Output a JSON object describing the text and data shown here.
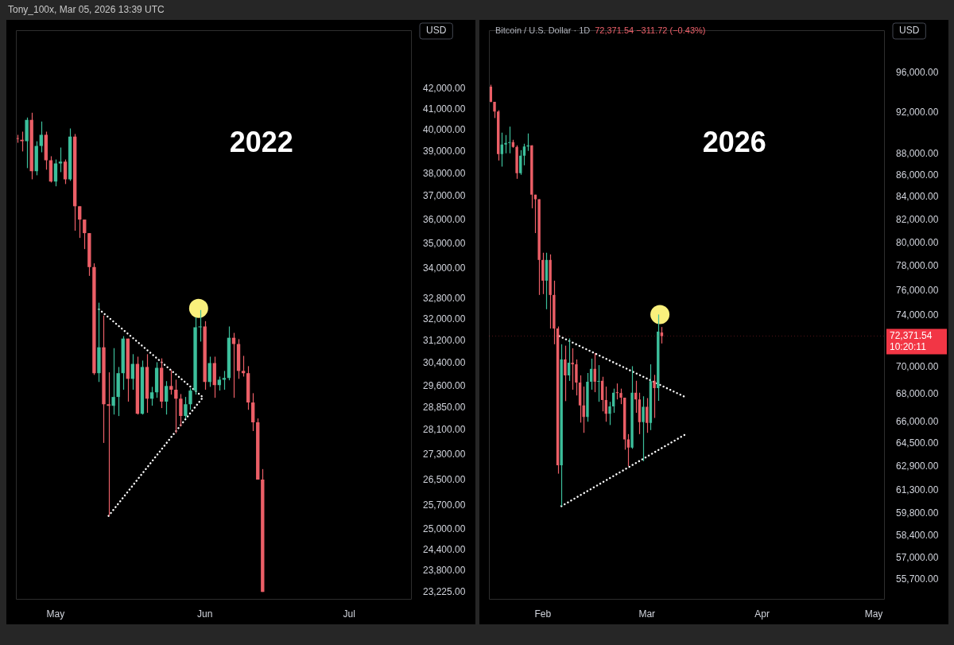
{
  "chart_data": [
    {
      "type": "candlestick",
      "title": "2022",
      "ylabel": "USD",
      "annotations": [
        "Tony_100x, Mar 05, 2026 13:39 UTC"
      ],
      "log": "y",
      "x": [
        "2022-04-23",
        "2022-04-24",
        "2022-04-25",
        "2022-04-26",
        "2022-04-27",
        "2022-04-28",
        "2022-04-29",
        "2022-04-30",
        "2022-05-01",
        "2022-05-02",
        "2022-05-03",
        "2022-05-04",
        "2022-05-05",
        "2022-05-06",
        "2022-05-07",
        "2022-05-08",
        "2022-05-09",
        "2022-05-10",
        "2022-05-11",
        "2022-05-12",
        "2022-05-13",
        "2022-05-14",
        "2022-05-15",
        "2022-05-16",
        "2022-05-17",
        "2022-05-18",
        "2022-05-19",
        "2022-05-20",
        "2022-05-21",
        "2022-05-22",
        "2022-05-23",
        "2022-05-24",
        "2022-05-25",
        "2022-05-26",
        "2022-05-27",
        "2022-05-28",
        "2022-05-29",
        "2022-05-30",
        "2022-05-31",
        "2022-06-01",
        "2022-06-02",
        "2022-06-03",
        "2022-06-04",
        "2022-06-05",
        "2022-06-06",
        "2022-06-07",
        "2022-06-08",
        "2022-06-09",
        "2022-06-10",
        "2022-06-11",
        "2022-06-12",
        "2022-06-13"
      ],
      "ohlc": [
        [
          39620,
          39790,
          39420,
          39600
        ],
        [
          39560,
          39940,
          39020,
          39490
        ],
        [
          39490,
          40610,
          38260,
          40500
        ],
        [
          40500,
          40840,
          37760,
          38120
        ],
        [
          38120,
          39490,
          37940,
          39270
        ],
        [
          39270,
          40420,
          38980,
          39790
        ],
        [
          39790,
          39940,
          38190,
          38620
        ],
        [
          38620,
          38800,
          37620,
          37660
        ],
        [
          37660,
          38650,
          37450,
          38470
        ],
        [
          38470,
          39200,
          38080,
          38550
        ],
        [
          38550,
          38650,
          37550,
          37760
        ],
        [
          37760,
          40090,
          37690,
          39710
        ],
        [
          39710,
          39830,
          35540,
          36580
        ],
        [
          36580,
          36580,
          35240,
          36010
        ],
        [
          36010,
          36010,
          34780,
          35440
        ],
        [
          35440,
          35440,
          33700,
          34050
        ],
        [
          34050,
          34200,
          29990,
          30050
        ],
        [
          30050,
          32650,
          29740,
          30980
        ],
        [
          30980,
          32160,
          27680,
          28970
        ],
        [
          28970,
          30080,
          25400,
          28920
        ],
        [
          28920,
          30950,
          28620,
          29220
        ],
        [
          29220,
          30270,
          28570,
          30050
        ],
        [
          30050,
          31390,
          29470,
          31300
        ],
        [
          31300,
          31300,
          29060,
          29850
        ],
        [
          29850,
          30730,
          29470,
          30380
        ],
        [
          30380,
          30640,
          28620,
          28650
        ],
        [
          28650,
          30500,
          28620,
          30270
        ],
        [
          30270,
          30730,
          28680,
          29160
        ],
        [
          29160,
          29570,
          28920,
          29380
        ],
        [
          29380,
          30440,
          29190,
          30240
        ],
        [
          30240,
          30580,
          28840,
          29060
        ],
        [
          29060,
          29770,
          28620,
          29600
        ],
        [
          29600,
          30160,
          29300,
          29470
        ],
        [
          29470,
          29820,
          28000,
          29160
        ],
        [
          29160,
          29320,
          28220,
          28570
        ],
        [
          28570,
          29220,
          28490,
          28970
        ],
        [
          28970,
          29520,
          28780,
          29440
        ],
        [
          29440,
          32100,
          29300,
          31720
        ],
        [
          31720,
          32370,
          31190,
          31750
        ],
        [
          31750,
          31950,
          29470,
          29740
        ],
        [
          29740,
          30640,
          29570,
          30410
        ],
        [
          30410,
          30640,
          29190,
          29630
        ],
        [
          29630,
          29930,
          29440,
          29820
        ],
        [
          29820,
          30130,
          29470,
          29880
        ],
        [
          29880,
          31750,
          29800,
          31330
        ],
        [
          31330,
          31510,
          29190,
          31100
        ],
        [
          31100,
          31280,
          29850,
          30130
        ],
        [
          30130,
          30670,
          29930,
          30050
        ],
        [
          30050,
          30300,
          28780,
          29030
        ],
        [
          29030,
          29350,
          28070,
          28360
        ],
        [
          28360,
          28490,
          26510,
          26510
        ],
        [
          26510,
          26840,
          23225,
          23225
        ]
      ],
      "colors": [
        "#ec5f67",
        "#ec5f67",
        "#3cbf9c",
        "#ec5f67",
        "#3cbf9c",
        "#3cbf9c",
        "#ec5f67",
        "#ec5f67",
        "#3cbf9c",
        "#3cbf9c",
        "#ec5f67",
        "#3cbf9c",
        "#ec5f67",
        "#ec5f67",
        "#ec5f67",
        "#ec5f67",
        "#ec5f67",
        "#3cbf9c",
        "#ec5f67",
        "#ec5f67",
        "#3cbf9c",
        "#3cbf9c",
        "#3cbf9c",
        "#ec5f67",
        "#3cbf9c",
        "#ec5f67",
        "#3cbf9c",
        "#ec5f67",
        "#3cbf9c",
        "#3cbf9c",
        "#ec5f67",
        "#3cbf9c",
        "#ec5f67",
        "#ec5f67",
        "#ec5f67",
        "#3cbf9c",
        "#3cbf9c",
        "#3cbf9c",
        "#3cbf9c",
        "#ec5f67",
        "#3cbf9c",
        "#ec5f67",
        "#3cbf9c",
        "#3cbf9c",
        "#3cbf9c",
        "#ec5f67",
        "#ec5f67",
        "#ec5f67",
        "#ec5f67",
        "#ec5f67",
        "#ec5f67",
        "#ec5f67"
      ],
      "series": [
        {
          "type": "line",
          "x": [
            "2022-05-10",
            "2022-05-31T18:00"
          ],
          "values": [
            32400,
            29190
          ],
          "color": "#ffffff",
          "line_style": "dotted"
        },
        {
          "type": "line",
          "x": [
            "2022-05-12",
            "2022-05-31T18:00"
          ],
          "values": [
            25400,
            29240
          ],
          "color": "#ffffff",
          "line_style": "dotted"
        },
        {
          "type": "scatter",
          "x": [
            "2022-05-30T17:00"
          ],
          "values": [
            32430
          ],
          "color": "#f9f07c",
          "marker": "circle"
        }
      ],
      "xlim": [
        "2022-04-22T18:00",
        "2022-07-14"
      ],
      "xticks": [
        {
          "value": "2022-05-01",
          "label": "May"
        },
        {
          "value": "2022-06-01",
          "label": "Jun"
        },
        {
          "value": "2022-07-01",
          "label": "Jul"
        }
      ],
      "ylim": [
        23000,
        45000
      ],
      "yticks": [
        {
          "value": 42000,
          "label": "42,000.00"
        },
        {
          "value": 41000,
          "label": "41,000.00"
        },
        {
          "value": 40000,
          "label": "40,000.00"
        },
        {
          "value": 39000,
          "label": "39,000.00"
        },
        {
          "value": 38000,
          "label": "38,000.00"
        },
        {
          "value": 37000,
          "label": "37,000.00"
        },
        {
          "value": 36000,
          "label": "36,000.00"
        },
        {
          "value": 35000,
          "label": "35,000.00"
        },
        {
          "value": 34000,
          "label": "34,000.00"
        },
        {
          "value": 32800,
          "label": "32,800.00"
        },
        {
          "value": 32000,
          "label": "32,000.00"
        },
        {
          "value": 31200,
          "label": "31,200.00"
        },
        {
          "value": 30400,
          "label": "30,400.00"
        },
        {
          "value": 29600,
          "label": "29,600.00"
        },
        {
          "value": 28850,
          "label": "28,850.00"
        },
        {
          "value": 28100,
          "label": "28,100.00"
        },
        {
          "value": 27300,
          "label": "27,300.00"
        },
        {
          "value": 26500,
          "label": "26,500.00"
        },
        {
          "value": 25700,
          "label": "25,700.00"
        },
        {
          "value": 25000,
          "label": "25,000.00"
        },
        {
          "value": 24400,
          "label": "24,400.00"
        },
        {
          "value": 23800,
          "label": "23,800.00"
        },
        {
          "value": 23225,
          "label": "23,225.00"
        }
      ]
    },
    {
      "type": "candlestick",
      "title": "2026",
      "subtitle": "Bitcoin / U.S. Dollar · 1D",
      "ylabel": "USD",
      "annotations": [
        "72,371.54 −311.72 (−0.43%)",
        "10:20:11"
      ],
      "log": "y",
      "x": [
        "2026-01-18",
        "2026-01-19",
        "2026-01-20",
        "2026-01-21",
        "2026-01-22",
        "2026-01-23",
        "2026-01-24",
        "2026-01-25",
        "2026-01-26",
        "2026-01-27",
        "2026-01-28",
        "2026-01-29",
        "2026-01-30",
        "2026-01-31",
        "2026-02-01",
        "2026-02-02",
        "2026-02-03",
        "2026-02-04",
        "2026-02-05",
        "2026-02-06",
        "2026-02-07",
        "2026-02-08",
        "2026-02-09",
        "2026-02-10",
        "2026-02-11",
        "2026-02-12",
        "2026-02-13",
        "2026-02-14",
        "2026-02-15",
        "2026-02-16",
        "2026-02-17",
        "2026-02-18",
        "2026-02-19",
        "2026-02-20",
        "2026-02-21",
        "2026-02-22",
        "2026-02-23",
        "2026-02-24",
        "2026-02-25",
        "2026-02-26",
        "2026-02-27",
        "2026-02-28",
        "2026-03-01",
        "2026-03-02",
        "2026-03-03",
        "2026-03-04",
        "2026-03-05"
      ],
      "ohlc": [
        [
          94600,
          94800,
          93030,
          93080
        ],
        [
          93080,
          93080,
          91470,
          92110
        ],
        [
          92110,
          92240,
          87390,
          87990
        ],
        [
          87990,
          90050,
          86820,
          88900
        ],
        [
          88900,
          89820,
          88070,
          89050
        ],
        [
          89050,
          90630,
          88070,
          89130
        ],
        [
          89130,
          89360,
          88600,
          88680
        ],
        [
          88680,
          88830,
          85690,
          86210
        ],
        [
          86210,
          88370,
          86060,
          87840
        ],
        [
          87840,
          88980,
          86940,
          88710
        ],
        [
          88710,
          89970,
          88300,
          88830
        ],
        [
          88830,
          88830,
          83020,
          84240
        ],
        [
          84240,
          84240,
          80840,
          83830
        ],
        [
          83830,
          83830,
          75640,
          78540
        ],
        [
          78540,
          79150,
          75710,
          76810
        ],
        [
          76810,
          79150,
          74490,
          78540
        ],
        [
          78540,
          79010,
          72960,
          75640
        ],
        [
          75640,
          76810,
          71740,
          72960
        ],
        [
          72960,
          73120,
          62430,
          62990
        ],
        [
          62990,
          71740,
          60290,
          70580
        ],
        [
          70580,
          71630,
          67490,
          69380
        ],
        [
          69380,
          72190,
          68970,
          70330
        ],
        [
          70330,
          71430,
          68320,
          70210
        ],
        [
          70210,
          70580,
          67900,
          68850
        ],
        [
          68850,
          69380,
          65950,
          67180
        ],
        [
          67180,
          68550,
          65230,
          66350
        ],
        [
          66350,
          69560,
          66010,
          68910
        ],
        [
          68910,
          70640,
          68320,
          69870
        ],
        [
          69870,
          71060,
          68140,
          68910
        ],
        [
          68910,
          70150,
          67440,
          68970
        ],
        [
          68980,
          69280,
          66750,
          67570
        ],
        [
          67570,
          68550,
          66010,
          66580
        ],
        [
          66580,
          67440,
          65780,
          67100
        ],
        [
          67100,
          68400,
          66650,
          68100
        ],
        [
          68100,
          68780,
          67610,
          68080
        ],
        [
          68080,
          68400,
          67270,
          67740
        ],
        [
          67740,
          67740,
          64060,
          64770
        ],
        [
          64770,
          65140,
          62940,
          64210
        ],
        [
          64210,
          70070,
          64120,
          68100
        ],
        [
          68100,
          68980,
          66650,
          67610
        ],
        [
          67610,
          68100,
          65140,
          65990
        ],
        [
          65990,
          67840,
          63270,
          67080
        ],
        [
          67080,
          67710,
          65230,
          65930
        ],
        [
          65930,
          70210,
          65420,
          68950
        ],
        [
          68950,
          69420,
          66280,
          68440
        ],
        [
          68440,
          74070,
          67510,
          72720
        ],
        [
          72650,
          73080,
          71800,
          72371.54
        ]
      ],
      "colors": [
        "#ec5f67",
        "#ec5f67",
        "#ec5f67",
        "#3cbf9c",
        "#3cbf9c",
        "#3cbf9c",
        "#ec5f67",
        "#ec5f67",
        "#3cbf9c",
        "#3cbf9c",
        "#3cbf9c",
        "#ec5f67",
        "#ec5f67",
        "#ec5f67",
        "#ec5f67",
        "#3cbf9c",
        "#ec5f67",
        "#ec5f67",
        "#ec5f67",
        "#3cbf9c",
        "#ec5f67",
        "#3cbf9c",
        "#ec5f67",
        "#ec5f67",
        "#ec5f67",
        "#ec5f67",
        "#3cbf9c",
        "#3cbf9c",
        "#ec5f67",
        "#3cbf9c",
        "#ec5f67",
        "#ec5f67",
        "#3cbf9c",
        "#3cbf9c",
        "#ec5f67",
        "#ec5f67",
        "#ec5f67",
        "#ec5f67",
        "#3cbf9c",
        "#ec5f67",
        "#ec5f67",
        "#3cbf9c",
        "#ec5f67",
        "#3cbf9c",
        "#ec5f67",
        "#3cbf9c",
        "#ec5f67"
      ],
      "series": [
        {
          "type": "line",
          "x": [
            "2026-02-05T10:00",
            "2026-03-11T19:00"
          ],
          "values": [
            72370,
            67720
          ],
          "color": "#ffffff",
          "line_style": "dotted"
        },
        {
          "type": "line",
          "x": [
            "2026-02-06",
            "2026-03-11T05:00"
          ],
          "values": [
            60290,
            65100
          ],
          "color": "#ffffff",
          "line_style": "dotted"
        },
        {
          "type": "scatter",
          "x": [
            "2026-03-04T12:00"
          ],
          "values": [
            74070
          ],
          "color": "#f9f07c",
          "marker": "circle"
        }
      ],
      "ref_lines": [
        {
          "axis": "y",
          "value": 72371.54,
          "label": "72,371.54",
          "color": "#f23645"
        }
      ],
      "xlim": [
        "2026-01-17T12:00",
        "2026-05-04"
      ],
      "xticks": [
        {
          "value": "2026-02-01",
          "label": "Feb"
        },
        {
          "value": "2026-03-01",
          "label": "Mar"
        },
        {
          "value": "2026-04-01",
          "label": "Apr"
        },
        {
          "value": "2026-05-01",
          "label": "May"
        }
      ],
      "ylim": [
        54500,
        100500
      ],
      "yticks": [
        {
          "value": 96000,
          "label": "96,000.00"
        },
        {
          "value": 92000,
          "label": "92,000.00"
        },
        {
          "value": 88000,
          "label": "88,000.00"
        },
        {
          "value": 86000,
          "label": "86,000.00"
        },
        {
          "value": 84000,
          "label": "84,000.00"
        },
        {
          "value": 82000,
          "label": "82,000.00"
        },
        {
          "value": 80000,
          "label": "80,000.00"
        },
        {
          "value": 78000,
          "label": "78,000.00"
        },
        {
          "value": 76000,
          "label": "76,000.00"
        },
        {
          "value": 74000,
          "label": "74,000.00"
        },
        {
          "value": 70000,
          "label": "70,000.00"
        },
        {
          "value": 68000,
          "label": "68,000.00"
        },
        {
          "value": 66000,
          "label": "66,000.00"
        },
        {
          "value": 64500,
          "label": "64,500.00"
        },
        {
          "value": 62900,
          "label": "62,900.00"
        },
        {
          "value": 61300,
          "label": "61,300.00"
        },
        {
          "value": 59800,
          "label": "59,800.00"
        },
        {
          "value": 58400,
          "label": "58,400.00"
        },
        {
          "value": 57000,
          "label": "57,000.00"
        },
        {
          "value": 55700,
          "label": "55,700.00"
        }
      ]
    }
  ]
}
